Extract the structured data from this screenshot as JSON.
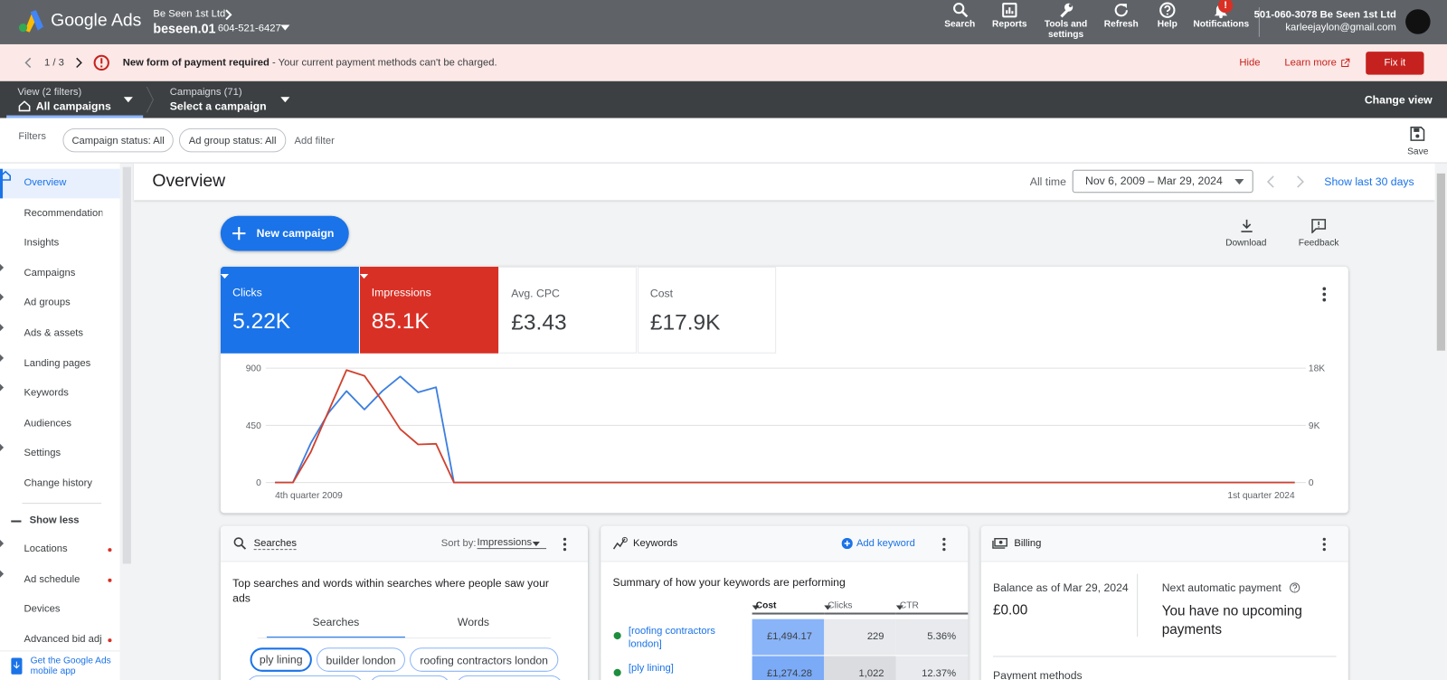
{
  "header": {
    "brand": "Google Ads",
    "account_name": "Be Seen 1st Ltd",
    "account_id_name": "beseen.01",
    "account_phone": "604-521-6427",
    "nav": [
      "Search",
      "Reports",
      "Tools and settings",
      "Refresh",
      "Help",
      "Notifications"
    ],
    "notification_badge": "!",
    "customer": "501-060-3078 Be Seen 1st Ltd",
    "email": "karleejaylon@gmail.com"
  },
  "alert": {
    "pager": "1 / 3",
    "title": "New form of payment required",
    "message": "- Your current payment methods can't be charged.",
    "hide": "Hide",
    "learn_more": "Learn more",
    "fix": "Fix it"
  },
  "viewbar": {
    "view_label": "View (2 filters)",
    "view_value": "All campaigns",
    "campaigns_label": "Campaigns (71)",
    "campaigns_value": "Select a campaign",
    "change_view": "Change view"
  },
  "filters": {
    "label": "Filters",
    "chips": [
      "Campaign status: All",
      "Ad group status: All"
    ],
    "add": "Add filter",
    "save": "Save"
  },
  "sidebar": {
    "items": [
      {
        "label": "Overview",
        "expandable": false,
        "selected": true
      },
      {
        "label": "Recommendations",
        "expandable": false
      },
      {
        "label": "Insights",
        "expandable": false
      },
      {
        "label": "Campaigns",
        "expandable": true
      },
      {
        "label": "Ad groups",
        "expandable": true
      },
      {
        "label": "Ads & assets",
        "expandable": true
      },
      {
        "label": "Landing pages",
        "expandable": true
      },
      {
        "label": "Keywords",
        "expandable": true
      },
      {
        "label": "Audiences",
        "expandable": false
      },
      {
        "label": "Settings",
        "expandable": true
      },
      {
        "label": "Change history",
        "expandable": false
      }
    ],
    "show_less": "Show less",
    "more_items": [
      {
        "label": "Locations",
        "expandable": true,
        "alert": true
      },
      {
        "label": "Ad schedule",
        "expandable": true,
        "alert": true
      },
      {
        "label": "Devices",
        "expandable": false
      },
      {
        "label": "Advanced bid adj.",
        "expandable": false,
        "alert": true
      }
    ],
    "app_promo": "Get the Google Ads mobile app"
  },
  "overview": {
    "title": "Overview",
    "range_label": "All time",
    "date_range": "Nov 6, 2009 – Mar 29, 2024",
    "show_last": "Show last 30 days",
    "new_campaign": "New campaign",
    "download": "Download",
    "feedback": "Feedback"
  },
  "metrics": [
    {
      "label": "Clicks",
      "value": "5.22K"
    },
    {
      "label": "Impressions",
      "value": "85.1K"
    },
    {
      "label": "Avg. CPC",
      "value": "£3.43"
    },
    {
      "label": "Cost",
      "value": "£17.9K"
    }
  ],
  "chart_data": {
    "type": "line",
    "grid": true,
    "categories": [
      "4th quarter 2009",
      null,
      null,
      null,
      null,
      null,
      null,
      null,
      null,
      null,
      null,
      null,
      null,
      null,
      null,
      null,
      null,
      null,
      null,
      null,
      null,
      null,
      null,
      null,
      null,
      null,
      null,
      null,
      null,
      null,
      null,
      null,
      null,
      null,
      null,
      null,
      null,
      null,
      null,
      null,
      null,
      null,
      null,
      null,
      null,
      null,
      null,
      null,
      null,
      null,
      null,
      null,
      null,
      null,
      null,
      null,
      null,
      "1st quarter 2024"
    ],
    "ylim": [
      0,
      900
    ],
    "yticks": [
      0,
      450,
      900
    ],
    "y2lim": [
      0,
      18000
    ],
    "y2ticks": [
      0,
      {
        "value": 9000,
        "label": "9K"
      },
      {
        "value": 18000,
        "label": "18K"
      }
    ],
    "series": [
      {
        "name": "Clicks",
        "color": "#3d7fe0",
        "values": [
          0,
          0,
          310,
          550,
          720,
          575,
          720,
          835,
          710,
          750,
          0,
          0,
          0,
          0,
          0,
          0,
          0,
          0,
          0,
          0,
          0,
          0,
          0,
          0,
          0,
          0,
          0,
          0,
          0,
          0,
          0,
          0,
          0,
          0,
          0,
          0,
          0,
          0,
          0,
          0,
          0,
          0,
          0,
          0,
          0,
          0,
          0,
          0,
          0,
          0,
          0,
          0,
          0,
          0,
          0,
          0,
          0,
          0
        ]
      },
      {
        "name": "Impressions",
        "color": "#d0422f",
        "axis": "y2",
        "values": [
          0,
          0,
          4800,
          11300,
          17700,
          16800,
          12800,
          8400,
          6000,
          6100,
          0,
          0,
          0,
          0,
          0,
          0,
          0,
          0,
          0,
          0,
          0,
          0,
          0,
          0,
          0,
          0,
          0,
          0,
          0,
          0,
          0,
          0,
          0,
          0,
          0,
          0,
          0,
          0,
          0,
          0,
          0,
          0,
          0,
          0,
          0,
          0,
          0,
          0,
          0,
          0,
          0,
          0,
          0,
          0,
          0,
          0,
          0,
          0
        ]
      }
    ]
  },
  "searches": {
    "title": "Searches",
    "sort_label": "Sort by:",
    "sort_value": "Impressions",
    "description": "Top searches and words within searches where people saw your ads",
    "tabs": [
      "Searches",
      "Words"
    ],
    "chips": [
      "ply lining",
      "builder london",
      "roofing contractors london"
    ]
  },
  "keywords": {
    "title": "Keywords",
    "add": "Add keyword",
    "description": "Summary of how your keywords are performing",
    "columns": [
      "Cost",
      "Clicks",
      "CTR"
    ],
    "rows": [
      [
        "[roofing contractors london]",
        "£1,494.17",
        "229",
        "5.36%"
      ],
      [
        "[ply lining]",
        "£1,274.28",
        "1,022",
        "12.37%"
      ]
    ]
  },
  "billing": {
    "title": "Billing",
    "balance_label": "Balance as of Mar 29, 2024",
    "balance": "£0.00",
    "next_label": "Next automatic payment",
    "next_value": "You have no upcoming payments",
    "methods": "Payment methods"
  }
}
